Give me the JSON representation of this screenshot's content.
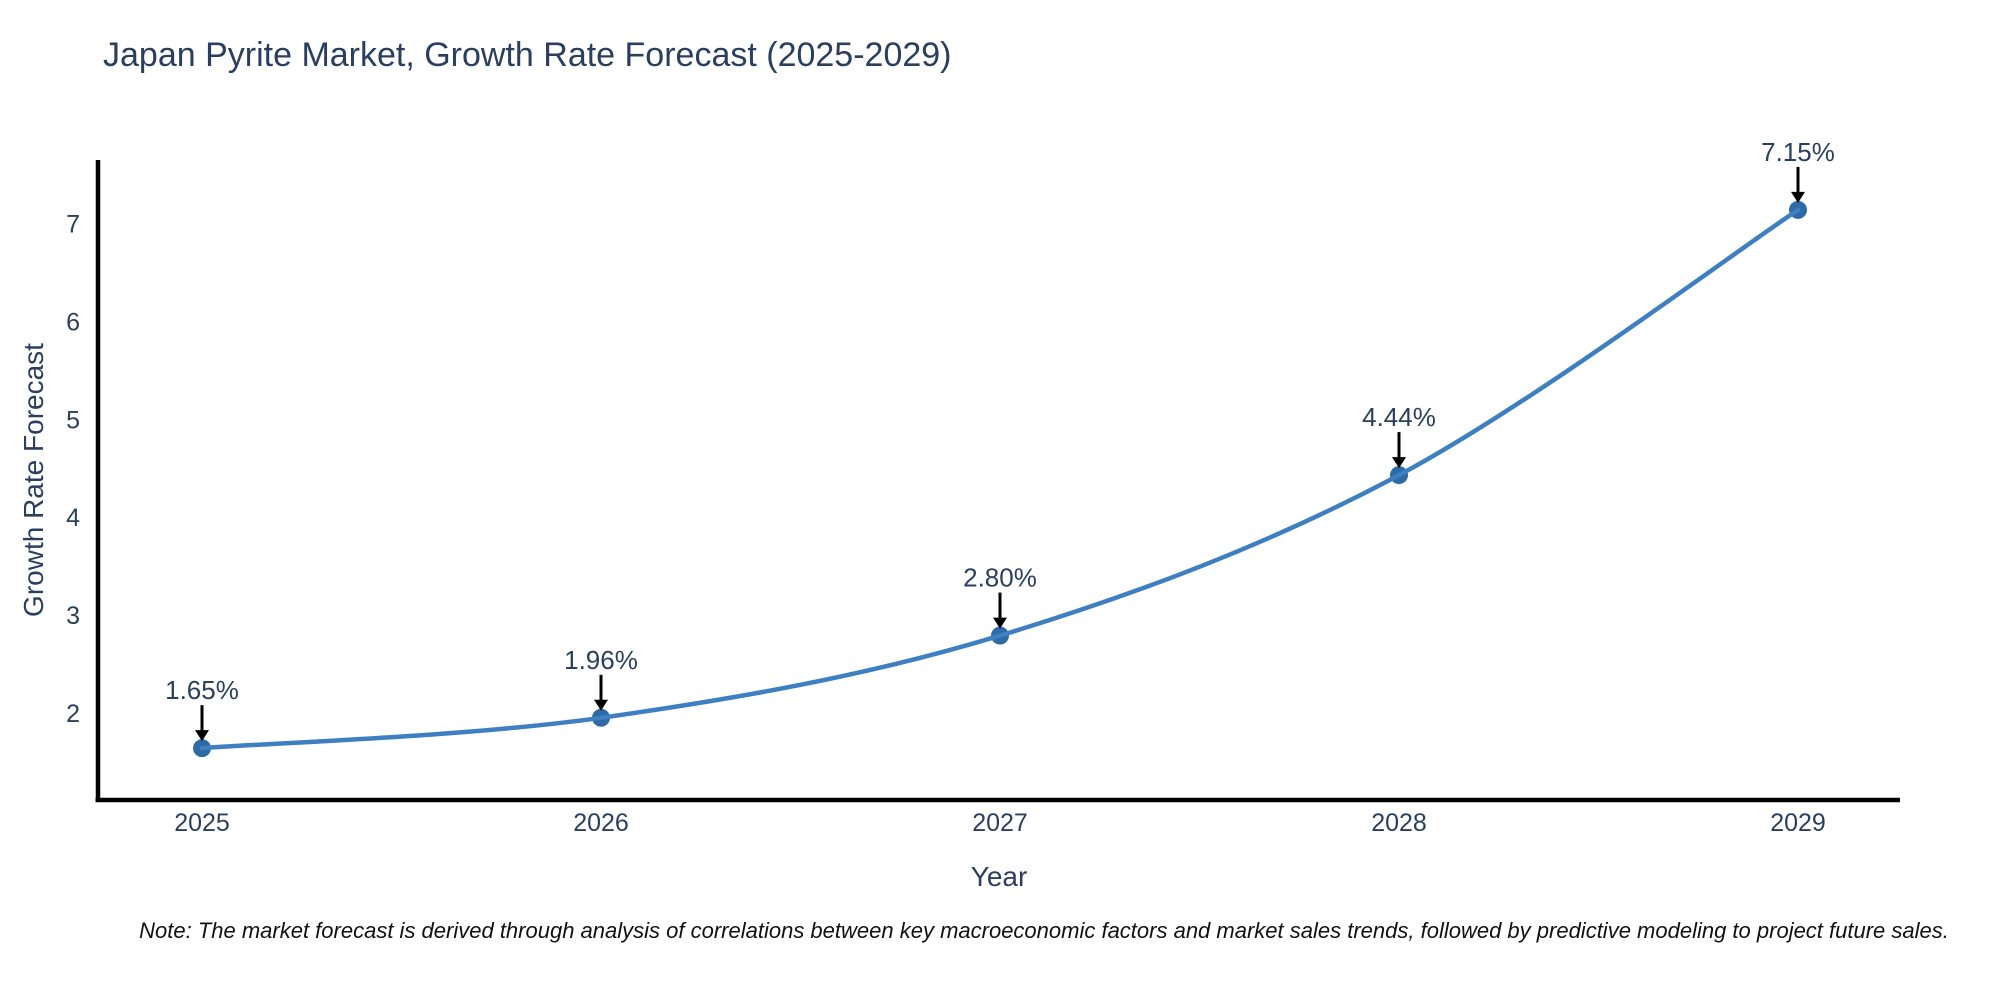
{
  "chart_data": {
    "type": "line",
    "title": "Japan Pyrite Market, Growth Rate Forecast (2025-2029)",
    "xlabel": "Year",
    "ylabel": "Growth Rate Forecast",
    "x": [
      "2025",
      "2026",
      "2027",
      "2028",
      "2029"
    ],
    "series": [
      {
        "name": "Growth Rate Forecast",
        "values": [
          1.65,
          1.96,
          2.8,
          4.44,
          7.15
        ]
      }
    ],
    "point_labels": [
      "1.65%",
      "1.96%",
      "2.80%",
      "4.44%",
      "7.15%"
    ],
    "yticks": [
      2,
      3,
      4,
      5,
      6,
      7
    ],
    "ylim": [
      1.12,
      7.66
    ],
    "grid": false,
    "legend": "none",
    "line_shape": "spline",
    "colors": {
      "line": "#3d7fc1",
      "marker": "#2e6aa5",
      "spine": "#000000",
      "arrow": "#000000",
      "text": "#2a3f5f",
      "note_text": "#111111",
      "background": "#ffffff"
    },
    "note": "Note: The market forecast is derived through analysis of correlations between key macroeconomic factors and market sales trends, followed by predictive modeling to project future sales."
  }
}
